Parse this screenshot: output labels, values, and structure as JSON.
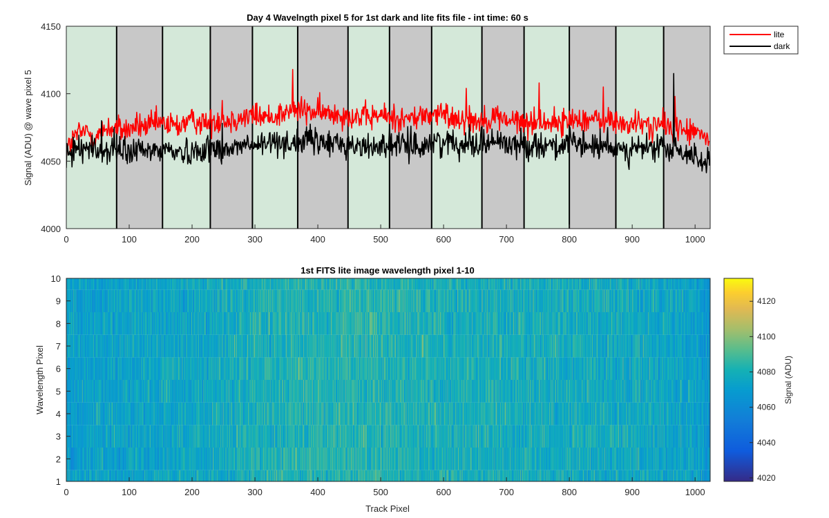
{
  "chart_data": [
    {
      "type": "line",
      "title": "Day 4 Wavelngth pixel 5 for 1st dark and lite fits file - int time: 60 s",
      "xlabel": "",
      "ylabel": "Signal (ADU) @ wave pixel 5",
      "xlim": [
        0,
        1024
      ],
      "ylim": [
        4000,
        4150
      ],
      "xticks": [
        0,
        100,
        200,
        300,
        400,
        500,
        600,
        700,
        800,
        900,
        1000
      ],
      "yticks": [
        4000,
        4050,
        4100,
        4150
      ],
      "legend_position": "outside-top-right",
      "background_bands": {
        "boundaries": [
          0,
          80,
          153,
          229,
          296,
          368,
          448,
          514,
          581,
          661,
          728,
          800,
          874,
          950,
          1024
        ],
        "colors": [
          "#d4e8d9",
          "#c8c8c8",
          "#d4e8d9",
          "#c8c8c8",
          "#d4e8d9",
          "#c8c8c8",
          "#d4e8d9",
          "#c8c8c8",
          "#d4e8d9",
          "#c8c8c8",
          "#d4e8d9",
          "#c8c8c8",
          "#d4e8d9",
          "#c8c8c8"
        ]
      },
      "series": [
        {
          "name": "lite",
          "color": "#ff0000",
          "x_start": 0,
          "x_step": 16,
          "values": [
            4058,
            4070,
            4072,
            4068,
            4075,
            4074,
            4073,
            4076,
            4075,
            4078,
            4077,
            4076,
            4079,
            4080,
            4078,
            4081,
            4080,
            4082,
            4083,
            4084,
            4082,
            4085,
            4086,
            4088,
            4087,
            4086,
            4085,
            4086,
            4084,
            4083,
            4082,
            4084,
            4083,
            4082,
            4081,
            4083,
            4084,
            4085,
            4083,
            4082,
            4081,
            4080,
            4082,
            4083,
            4080,
            4079,
            4078,
            4080,
            4079,
            4078,
            4080,
            4082,
            4081,
            4079,
            4080,
            4078,
            4077,
            4078,
            4076,
            4077,
            4075,
            4074,
            4072,
            4070,
            4065
          ],
          "spread": 9,
          "spikes": [
            [
              248,
              4095
            ],
            [
              360,
              4118
            ],
            [
              636,
              4104
            ],
            [
              752,
              4108
            ],
            [
              854,
              4105
            ],
            [
              968,
              4098
            ]
          ]
        },
        {
          "name": "dark",
          "color": "#000000",
          "x_start": 0,
          "x_step": 16,
          "values": [
            4050,
            4062,
            4060,
            4058,
            4057,
            4058,
            4056,
            4058,
            4057,
            4058,
            4059,
            4057,
            4056,
            4058,
            4060,
            4059,
            4058,
            4061,
            4062,
            4061,
            4063,
            4065,
            4064,
            4063,
            4066,
            4064,
            4063,
            4064,
            4062,
            4061,
            4060,
            4062,
            4063,
            4061,
            4062,
            4060,
            4063,
            4065,
            4064,
            4063,
            4065,
            4062,
            4064,
            4065,
            4063,
            4062,
            4061,
            4063,
            4062,
            4061,
            4063,
            4061,
            4062,
            4060,
            4059,
            4061,
            4058,
            4060,
            4059,
            4061,
            4058,
            4057,
            4055,
            4052,
            4048
          ],
          "spread": 9,
          "spikes": [
            [
              56,
              4080
            ],
            [
              76,
              4075
            ],
            [
              248,
              4078
            ],
            [
              390,
              4073
            ],
            [
              548,
              4076
            ],
            [
              660,
              4075
            ],
            [
              801,
              4075
            ],
            [
              861,
              4075
            ],
            [
              966,
              4115
            ]
          ]
        }
      ]
    },
    {
      "type": "heatmap",
      "title": "1st FITS lite image wavelength pixel 1-10",
      "xlabel": "Track Pixel",
      "ylabel": "Wavelength Pixel",
      "xlim": [
        0,
        1024
      ],
      "ylim": [
        1,
        10
      ],
      "xticks": [
        0,
        100,
        200,
        300,
        400,
        500,
        600,
        700,
        800,
        900,
        1000
      ],
      "yticks": [
        1,
        2,
        3,
        4,
        5,
        6,
        7,
        8,
        9,
        10
      ],
      "rows": 10,
      "columns": 1024,
      "baseline_profile": {
        "x": [
          0,
          100,
          200,
          300,
          400,
          500,
          600,
          700,
          800,
          900,
          1000,
          1024
        ],
        "values": [
          4070,
          4074,
          4075,
          4080,
          4083,
          4082,
          4080,
          4079,
          4078,
          4077,
          4072,
          4065
        ]
      },
      "colorbar": {
        "label": "Signal (ADU)",
        "clim": [
          4018,
          4133
        ],
        "ticks": [
          4020,
          4040,
          4060,
          4080,
          4100,
          4120
        ],
        "colormap": "parula"
      }
    }
  ]
}
